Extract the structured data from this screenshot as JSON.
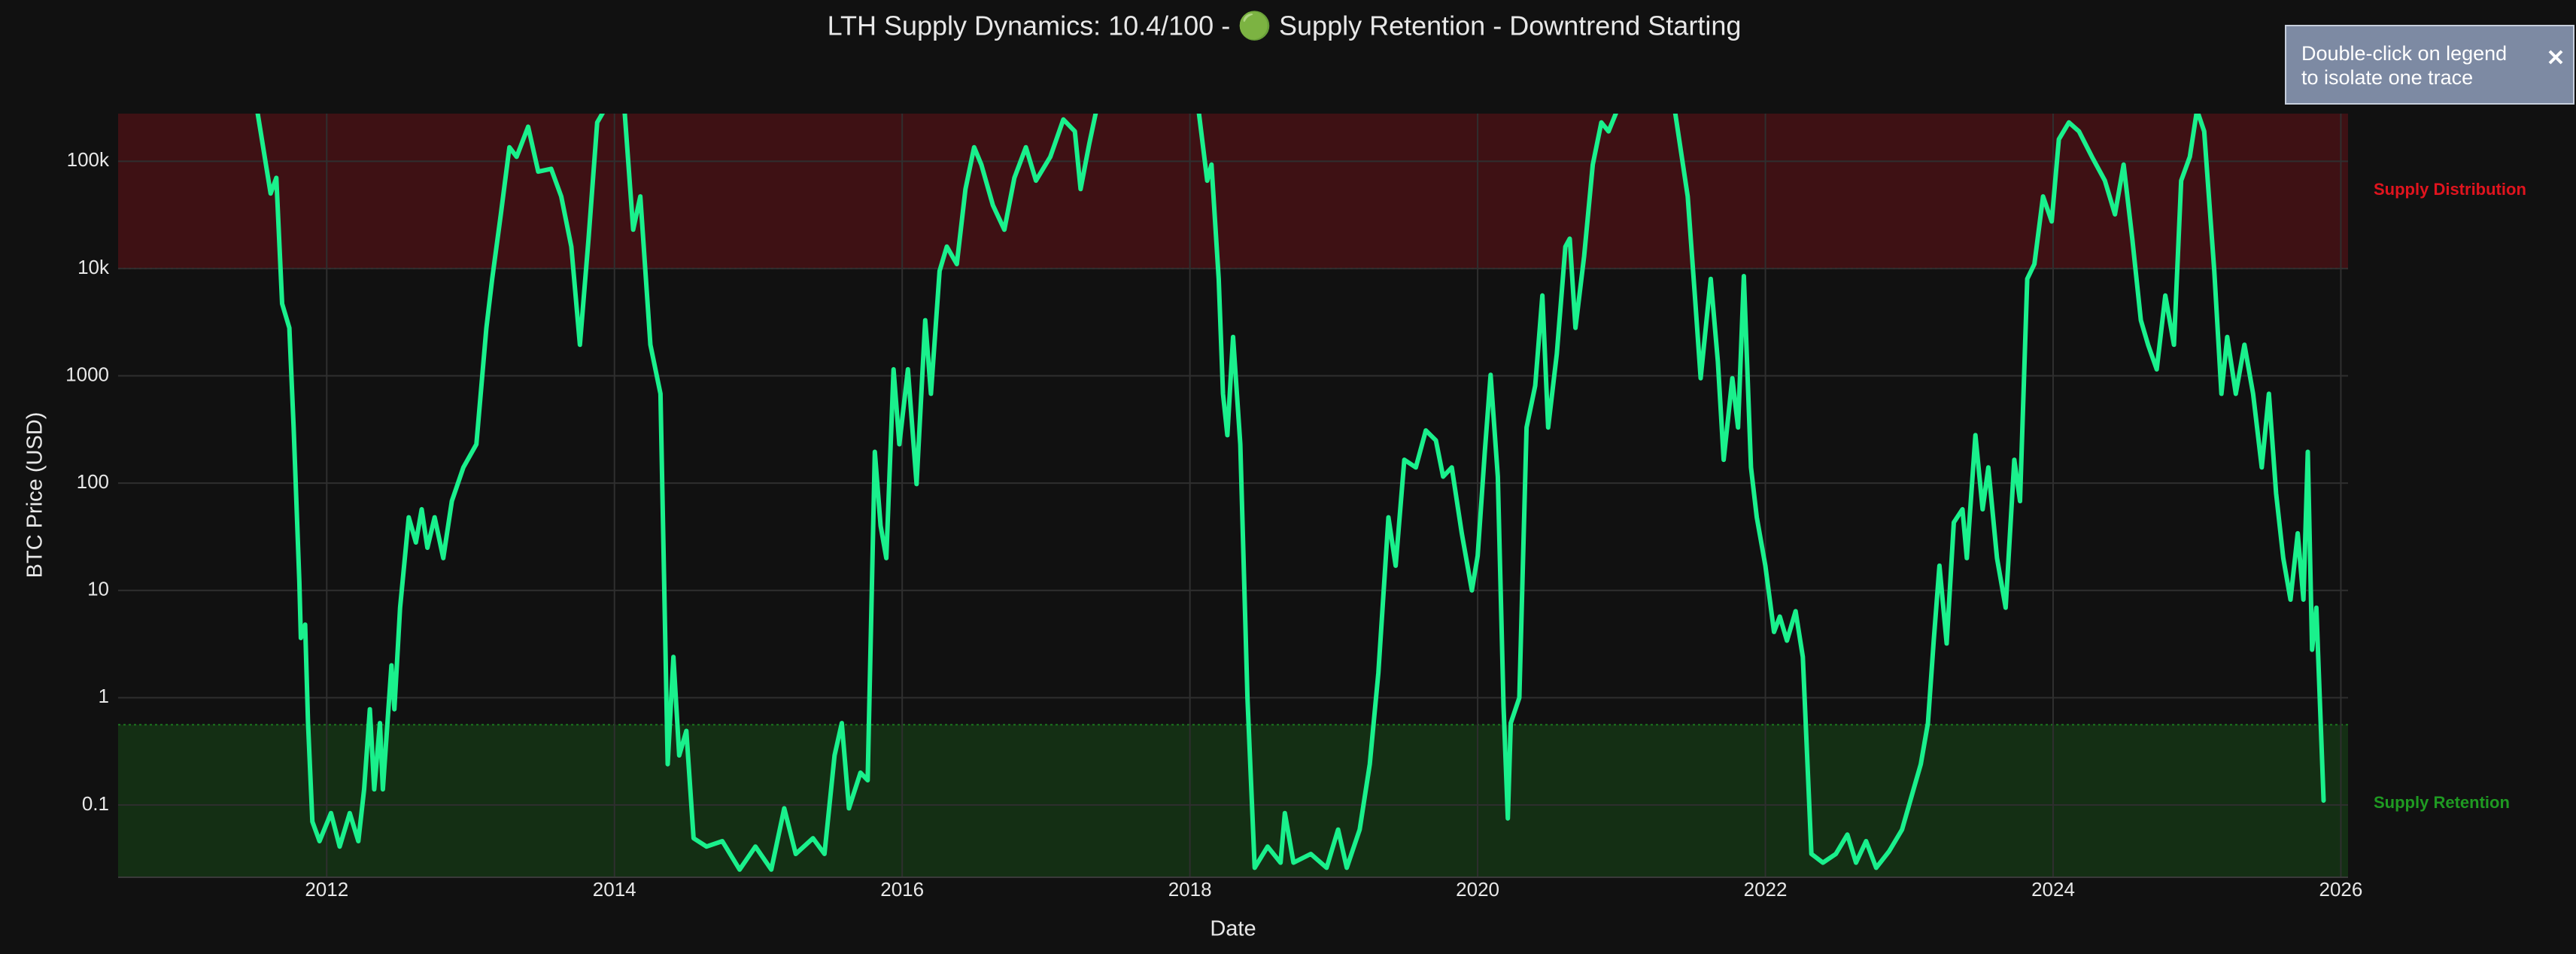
{
  "chart_data": {
    "type": "line",
    "title": "LTH Supply Dynamics: 10.4/100 - 🟢 Supply Retention - Downtrend Starting",
    "x_label": "Date",
    "y_label": "BTC Price (USD)",
    "log_y": true,
    "grid": true,
    "color": "#1af08c",
    "xlim": [
      2010.55,
      2026.05
    ],
    "xticks": [
      2012,
      2014,
      2016,
      2018,
      2020,
      2022,
      2024,
      2026
    ],
    "ylim": [
      0.0212,
      278000
    ],
    "yticks": [
      0.1,
      1,
      10,
      100,
      1000,
      {
        "value": 10000,
        "label": "10k"
      },
      {
        "value": 100000,
        "label": "100k"
      }
    ],
    "bands": [
      {
        "label": "Supply Distribution",
        "from": 10000,
        "to": 278000,
        "color": "#e0141e"
      },
      {
        "label": "Supply Retention",
        "from": 0.0212,
        "to": 0.56,
        "color": "#1f9a22"
      }
    ],
    "x": [
      2011.52,
      2011.61,
      2011.65,
      2011.69,
      2011.74,
      2011.77,
      2011.81,
      2011.82,
      2011.85,
      2011.87,
      2011.9,
      2011.95,
      2012.03,
      2012.09,
      2012.16,
      2012.22,
      2012.26,
      2012.3,
      2012.33,
      2012.37,
      2012.39,
      2012.45,
      2012.47,
      2012.51,
      2012.57,
      2012.62,
      2012.66,
      2012.7,
      2012.75,
      2012.81,
      2012.87,
      2012.95,
      2013.04,
      2013.11,
      2013.15,
      2013.21,
      2013.27,
      2013.32,
      2013.4,
      2013.47,
      2013.56,
      2013.63,
      2013.7,
      2013.76,
      2013.82,
      2013.88,
      2013.93,
      2014.07,
      2014.13,
      2014.18,
      2014.25,
      2014.32,
      2014.37,
      2014.41,
      2014.45,
      2014.5,
      2014.55,
      2014.64,
      2014.75,
      2014.87,
      2014.98,
      2015.09,
      2015.18,
      2015.26,
      2015.38,
      2015.46,
      2015.53,
      2015.58,
      2015.63,
      2015.71,
      2015.76,
      2015.81,
      2015.85,
      2015.89,
      2015.94,
      2015.98,
      2016.04,
      2016.1,
      2016.16,
      2016.2,
      2016.26,
      2016.31,
      2016.38,
      2016.44,
      2016.5,
      2016.55,
      2016.63,
      2016.71,
      2016.78,
      2016.86,
      2016.93,
      2017.03,
      2017.12,
      2017.2,
      2017.24,
      2017.3,
      2017.35,
      2018.06,
      2018.12,
      2018.15,
      2018.2,
      2018.23,
      2018.26,
      2018.3,
      2018.35,
      2018.4,
      2018.45,
      2018.54,
      2018.63,
      2018.66,
      2018.72,
      2018.84,
      2018.95,
      2019.03,
      2019.09,
      2019.18,
      2019.25,
      2019.31,
      2019.38,
      2019.43,
      2019.49,
      2019.57,
      2019.64,
      2019.71,
      2019.76,
      2019.82,
      2019.89,
      2019.96,
      2020.0,
      2020.05,
      2020.09,
      2020.14,
      2020.18,
      2020.21,
      2020.23,
      2020.29,
      2020.34,
      2020.4,
      2020.45,
      2020.49,
      2020.55,
      2020.61,
      2020.64,
      2020.68,
      2020.74,
      2020.8,
      2020.86,
      2020.91,
      2020.97,
      2021.37,
      2021.46,
      2021.51,
      2021.55,
      2021.62,
      2021.67,
      2021.71,
      2021.77,
      2021.81,
      2021.85,
      2021.9,
      2021.94,
      2022.0,
      2022.06,
      2022.1,
      2022.15,
      2022.21,
      2022.26,
      2022.32,
      2022.4,
      2022.49,
      2022.57,
      2022.63,
      2022.7,
      2022.77,
      2022.86,
      2022.95,
      2023.03,
      2023.08,
      2023.13,
      2023.17,
      2023.21,
      2023.26,
      2023.31,
      2023.37,
      2023.4,
      2023.46,
      2023.51,
      2023.55,
      2023.61,
      2023.67,
      2023.73,
      2023.77,
      2023.82,
      2023.87,
      2023.93,
      2023.99,
      2024.04,
      2024.11,
      2024.18,
      2024.27,
      2024.36,
      2024.43,
      2024.49,
      2024.55,
      2024.61,
      2024.66,
      2024.72,
      2024.78,
      2024.84,
      2024.89,
      2024.95,
      2025.0,
      2025.05,
      2025.12,
      2025.17,
      2025.21,
      2025.27,
      2025.33,
      2025.39,
      2025.45,
      2025.5,
      2025.55,
      2025.6,
      2025.65,
      2025.7,
      2025.74,
      2025.77,
      2025.8,
      2025.83,
      2025.88
    ],
    "values": [
      280000,
      50000,
      70000,
      4700,
      2800,
      330,
      12,
      3.6,
      4.8,
      0.59,
      0.07,
      0.046,
      0.084,
      0.041,
      0.084,
      0.046,
      0.14,
      0.78,
      0.14,
      0.58,
      0.14,
      2.0,
      0.78,
      6.9,
      48,
      28,
      57,
      25,
      48,
      20,
      68,
      140,
      230,
      2800,
      8000,
      32000,
      135000,
      110000,
      210000,
      80000,
      85000,
      47000,
      16000,
      1950,
      19000,
      230000,
      300000,
      300000,
      23000,
      47000,
      1950,
      680,
      0.24,
      2.4,
      0.29,
      0.49,
      0.049,
      0.041,
      0.046,
      0.025,
      0.041,
      0.025,
      0.093,
      0.035,
      0.049,
      0.035,
      0.29,
      0.58,
      0.093,
      0.2,
      0.17,
      196,
      40,
      20,
      1150,
      230,
      1150,
      98,
      3300,
      680,
      9500,
      16000,
      11000,
      55000,
      135000,
      93000,
      39000,
      23000,
      70000,
      135000,
      66000,
      110000,
      245000,
      190000,
      55000,
      145000,
      300000,
      300000,
      66000,
      93000,
      8000,
      680,
      280,
      2300,
      230,
      1.0,
      0.026,
      0.041,
      0.029,
      0.084,
      0.029,
      0.035,
      0.026,
      0.059,
      0.026,
      0.059,
      0.24,
      1.7,
      48,
      17,
      165,
      140,
      310,
      250,
      115,
      140,
      34,
      10,
      21,
      196,
      1020,
      115,
      0.83,
      0.075,
      0.58,
      1.0,
      330,
      810,
      5600,
      330,
      1600,
      16000,
      19000,
      2800,
      13000,
      93000,
      230000,
      190000,
      300000,
      300000,
      47000,
      5600,
      950,
      8000,
      1350,
      165,
      950,
      330,
      8500,
      140,
      48,
      17,
      4.1,
      5.7,
      3.4,
      6.4,
      2.4,
      0.035,
      0.029,
      0.035,
      0.053,
      0.029,
      0.046,
      0.026,
      0.037,
      0.059,
      0.14,
      0.24,
      0.58,
      3.4,
      17,
      3.2,
      43,
      57,
      20,
      280,
      57,
      140,
      20,
      6.9,
      165,
      68,
      8000,
      11000,
      47000,
      27500,
      160000,
      230000,
      190000,
      110000,
      66000,
      32000,
      93000,
      19000,
      3300,
      1950,
      1150,
      5600,
      1950,
      66000,
      110000,
      300000,
      190000,
      9500,
      680,
      2300,
      680,
      1950,
      680,
      140,
      680,
      80,
      20,
      8.2,
      34,
      8.2,
      196,
      2.8,
      6.9,
      0.11
    ]
  },
  "notifier": "Double-click on legend to isolate one trace"
}
